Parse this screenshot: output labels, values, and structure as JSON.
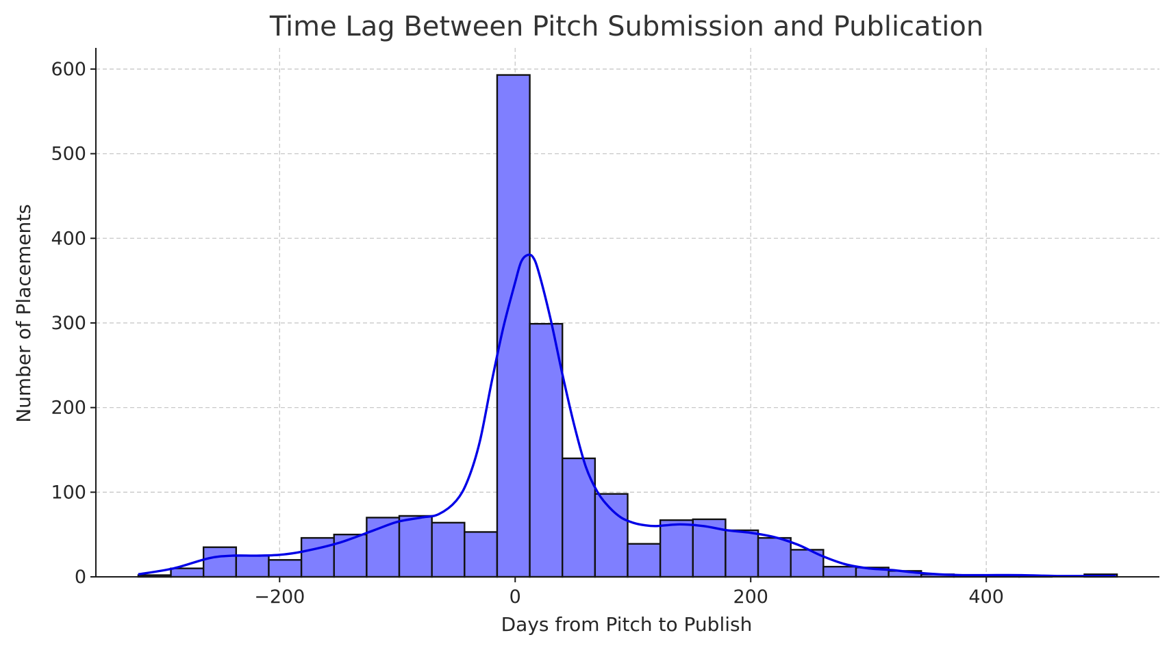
{
  "chart_data": {
    "type": "bar",
    "subtype": "histogram-with-kde",
    "title": "Time Lag Between Pitch Submission and Publication",
    "xlabel": "Days from Pitch to Publish",
    "ylabel": "Number of Placements",
    "xlim": [
      -356,
      547
    ],
    "ylim": [
      0,
      625
    ],
    "x_ticks": [
      -200,
      0,
      200,
      400
    ],
    "x_tick_labels": [
      "−200",
      "0",
      "200",
      "400"
    ],
    "y_ticks": [
      0,
      100,
      200,
      300,
      400,
      500,
      600
    ],
    "y_tick_labels": [
      "0",
      "100",
      "200",
      "300",
      "400",
      "500",
      "600"
    ],
    "grid": true,
    "bin_width": 27.7,
    "bins": [
      {
        "start": -320.0,
        "end": -292.3,
        "count": 2
      },
      {
        "start": -292.3,
        "end": -264.6,
        "count": 10
      },
      {
        "start": -264.6,
        "end": -236.9,
        "count": 35
      },
      {
        "start": -236.9,
        "end": -209.2,
        "count": 25
      },
      {
        "start": -209.2,
        "end": -181.5,
        "count": 20
      },
      {
        "start": -181.5,
        "end": -153.8,
        "count": 46
      },
      {
        "start": -153.8,
        "end": -126.1,
        "count": 50
      },
      {
        "start": -126.1,
        "end": -98.4,
        "count": 70
      },
      {
        "start": -98.4,
        "end": -70.7,
        "count": 72
      },
      {
        "start": -70.7,
        "end": -43.0,
        "count": 64
      },
      {
        "start": -43.0,
        "end": -15.3,
        "count": 53
      },
      {
        "start": -15.3,
        "end": 12.4,
        "count": 593
      },
      {
        "start": 12.4,
        "end": 40.1,
        "count": 299
      },
      {
        "start": 40.1,
        "end": 67.8,
        "count": 140
      },
      {
        "start": 67.8,
        "end": 95.5,
        "count": 98
      },
      {
        "start": 95.5,
        "end": 123.2,
        "count": 39
      },
      {
        "start": 123.2,
        "end": 150.9,
        "count": 67
      },
      {
        "start": 150.9,
        "end": 178.6,
        "count": 68
      },
      {
        "start": 178.6,
        "end": 206.3,
        "count": 55
      },
      {
        "start": 206.3,
        "end": 234.0,
        "count": 46
      },
      {
        "start": 234.0,
        "end": 261.7,
        "count": 32
      },
      {
        "start": 261.7,
        "end": 289.4,
        "count": 12
      },
      {
        "start": 289.4,
        "end": 317.1,
        "count": 11
      },
      {
        "start": 317.1,
        "end": 344.8,
        "count": 7
      },
      {
        "start": 344.8,
        "end": 372.5,
        "count": 3
      },
      {
        "start": 372.5,
        "end": 400.2,
        "count": 2
      },
      {
        "start": 400.2,
        "end": 427.9,
        "count": 2
      },
      {
        "start": 427.9,
        "end": 455.6,
        "count": 1
      },
      {
        "start": 455.6,
        "end": 483.3,
        "count": 0
      },
      {
        "start": 483.3,
        "end": 511.0,
        "count": 3
      }
    ],
    "kde": {
      "x": [
        -320,
        -290,
        -260,
        -240,
        -220,
        -200,
        -180,
        -150,
        -120,
        -100,
        -80,
        -65,
        -50,
        -40,
        -30,
        -20,
        -10,
        0,
        5,
        10,
        15,
        20,
        30,
        40,
        50,
        60,
        70,
        80,
        90,
        100,
        110,
        120,
        140,
        160,
        180,
        200,
        220,
        240,
        260,
        280,
        300,
        320,
        340,
        360,
        380,
        400,
        430,
        460,
        490,
        510
      ],
      "y": [
        3,
        10,
        22,
        25,
        25,
        26,
        30,
        40,
        55,
        65,
        70,
        74,
        90,
        115,
        160,
        230,
        295,
        348,
        372,
        380,
        378,
        360,
        305,
        240,
        180,
        130,
        100,
        82,
        70,
        64,
        61,
        60,
        62,
        60,
        55,
        52,
        47,
        38,
        25,
        15,
        10,
        8,
        5,
        3,
        2,
        2,
        2,
        1,
        1,
        1
      ]
    },
    "colors": {
      "bar_fill": "#7f7fff",
      "bar_edge": "#111111",
      "kde_line": "#0000e6",
      "grid": "#c8c8c8"
    }
  }
}
